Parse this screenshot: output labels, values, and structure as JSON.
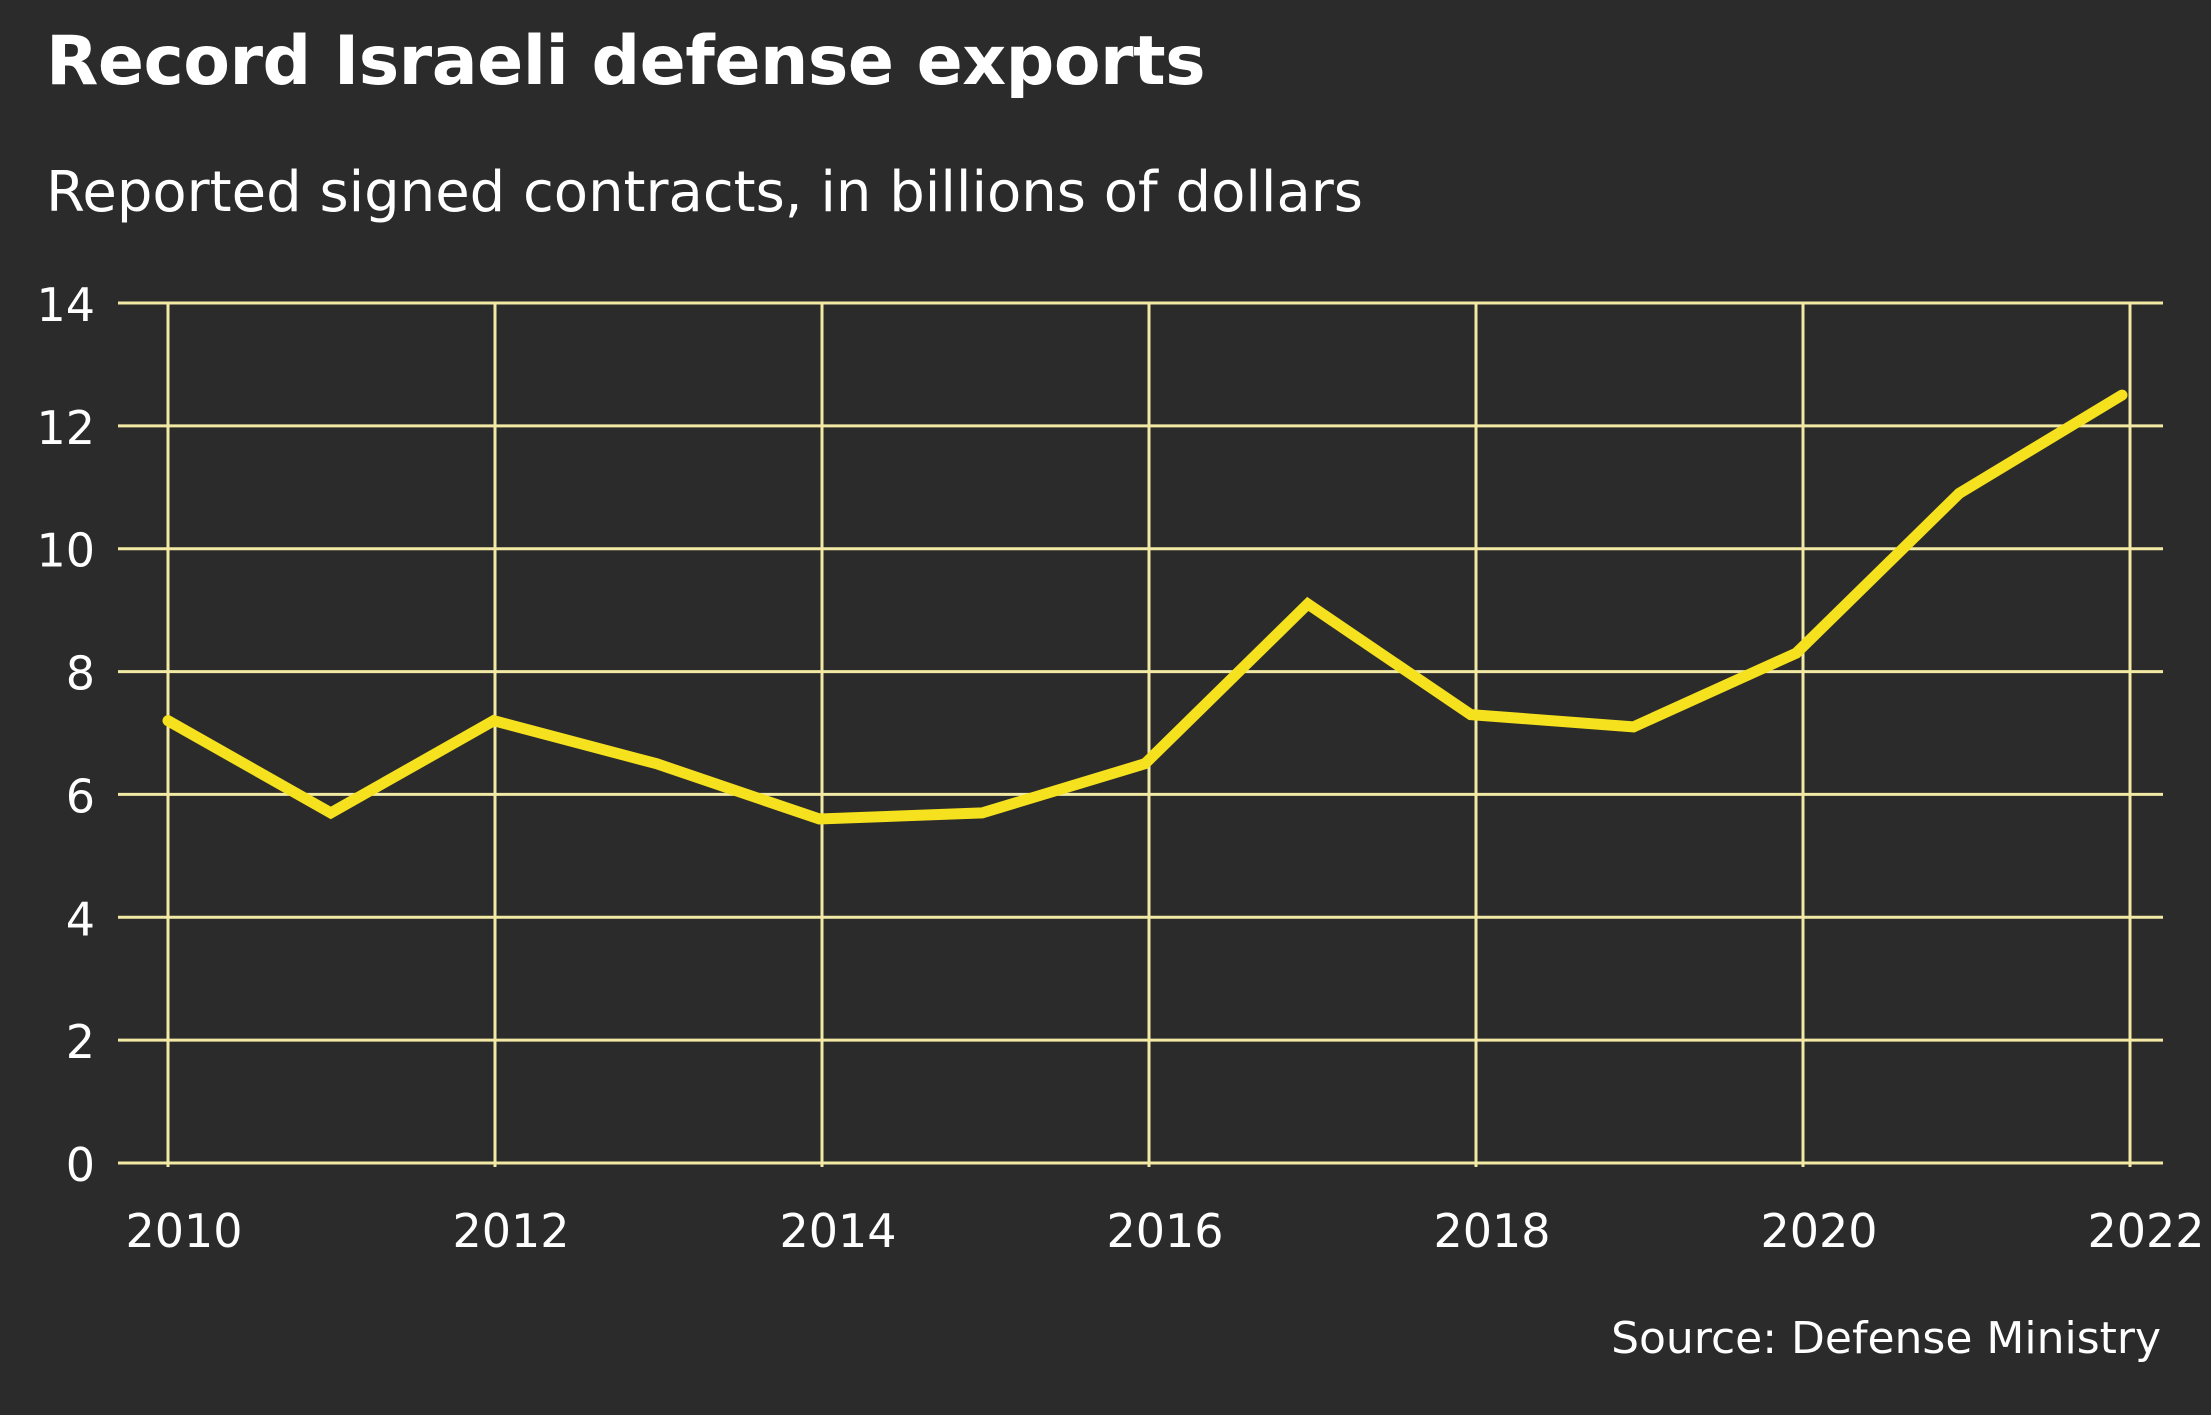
{
  "chart_data": {
    "type": "line",
    "title": "Record Israeli defense exports",
    "subtitle": "Reported signed contracts, in billions of dollars",
    "source": "Source: Defense Ministry",
    "xlabel": "",
    "ylabel": "",
    "xlim": [
      2010,
      2022
    ],
    "ylim": [
      0,
      14
    ],
    "x_ticks": [
      "2010",
      "2012",
      "2014",
      "2016",
      "2018",
      "2020",
      "2022"
    ],
    "y_ticks": [
      "0",
      "2",
      "4",
      "6",
      "8",
      "10",
      "12",
      "14"
    ],
    "grid": true,
    "series": [
      {
        "name": "",
        "x": [
          2010,
          2011,
          2012,
          2013,
          2014,
          2015,
          2016,
          2017,
          2018,
          2019,
          2020,
          2021,
          2022
        ],
        "values": [
          7.2,
          5.7,
          7.2,
          6.5,
          5.6,
          5.7,
          6.5,
          9.1,
          7.3,
          7.1,
          8.3,
          10.9,
          12.5
        ]
      }
    ],
    "colors": {
      "background": "#2b2b2b",
      "grid": "#f2eaa4",
      "line": "#f5e11d",
      "text": "#ffffff"
    }
  }
}
